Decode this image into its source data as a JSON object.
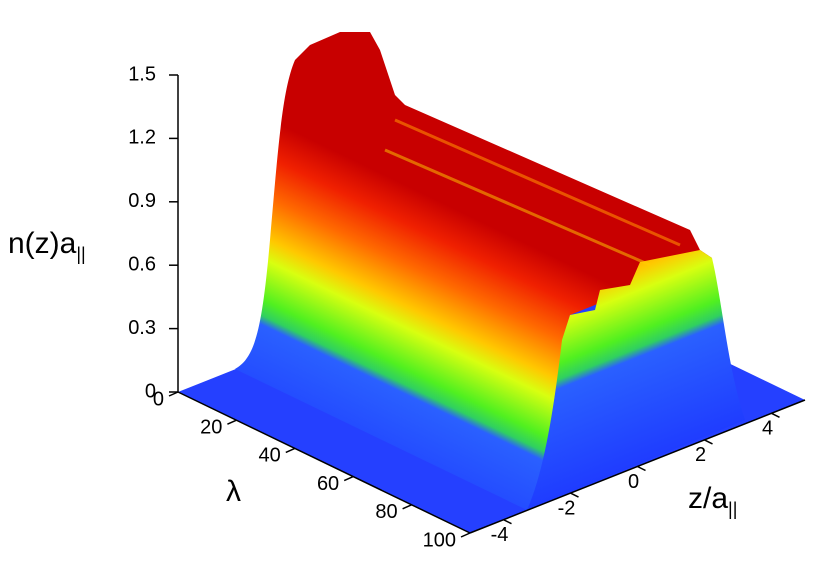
{
  "chart_data": {
    "type": "surface3d",
    "zlabel": "n(z)a",
    "zlabel_sub": "||",
    "zlim": [
      0,
      1.5
    ],
    "zticks": [
      0,
      0.3,
      0.6,
      0.9,
      1.2,
      1.5
    ],
    "ylabel": "λ",
    "ylim": [
      0,
      100
    ],
    "yticks": [
      0,
      20,
      40,
      60,
      80,
      100
    ],
    "xlabel": "z/a",
    "xlabel_sub": "||",
    "xlim": [
      -5,
      5
    ],
    "xticks": [
      -4,
      -2,
      0,
      2,
      4
    ]
  }
}
